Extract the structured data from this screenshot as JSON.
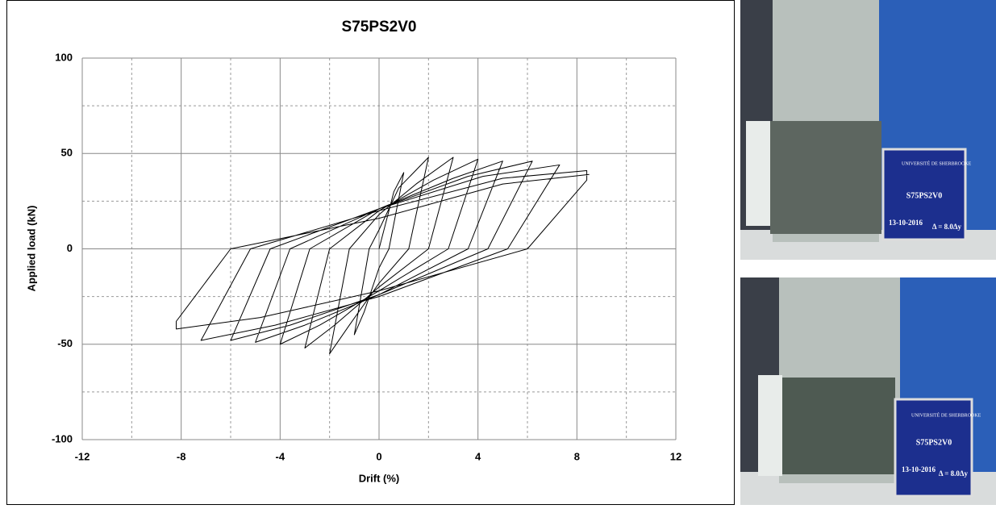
{
  "chart_data": {
    "type": "line",
    "title": "S75PS2V0",
    "xlabel": "Drift (%)",
    "ylabel": "Applied load (kN)",
    "x": [
      0,
      0.6,
      1,
      0.4,
      0,
      -0.6,
      -1,
      -0.4,
      0,
      0.8,
      2,
      1.2,
      0,
      -1.2,
      -2,
      -1.2,
      0,
      1.5,
      3,
      2,
      0,
      -1.8,
      -3,
      -2,
      0,
      2.2,
      4,
      2.8,
      0,
      -2.4,
      -4,
      -2.8,
      0,
      3,
      5,
      3.6,
      0,
      -3,
      -5,
      -3.6,
      0,
      3.6,
      6.2,
      4.4,
      0,
      -3.6,
      -6,
      -4.4,
      0,
      4.2,
      7.3,
      5.2,
      0,
      -4.2,
      -7.2,
      -5.2,
      0,
      5,
      8.4,
      8.4,
      6,
      0,
      -4.8,
      -8.2,
      -8.2,
      -6,
      0,
      5,
      8.5
    ],
    "values": [
      0,
      30,
      40,
      0,
      -10,
      -33,
      -45,
      0,
      10,
      32,
      48,
      0,
      -18,
      -40,
      -55,
      0,
      18,
      34,
      48,
      0,
      -20,
      -40,
      -52,
      0,
      20,
      36,
      47,
      0,
      -22,
      -40,
      -50,
      0,
      21,
      37,
      46,
      0,
      -24,
      -40,
      -49,
      0,
      21,
      38,
      46,
      0,
      -24,
      -40,
      -48,
      0,
      21,
      38,
      44,
      0,
      -25,
      -40,
      -48,
      0,
      20,
      37,
      41,
      36,
      0,
      -22,
      -36,
      -42,
      -38,
      0,
      16,
      34,
      39
    ],
    "color": "#000000",
    "xlim": [
      -12,
      12
    ],
    "xticks": [
      -12,
      -8,
      -4,
      0,
      4,
      8,
      12
    ],
    "ylim": [
      -100,
      100
    ],
    "yticks": [
      -100,
      -50,
      0,
      50,
      100
    ],
    "minor_xticks": [
      -10,
      -6,
      -2,
      2,
      6,
      10
    ],
    "minor_yticks": [
      -75,
      -25,
      25,
      75
    ],
    "grid": true
  },
  "photos": [
    {
      "university": "UNIVERSITÉ DE SHERBROOKE",
      "specimen": "S75PS2V0",
      "date": "13-10-2016",
      "ductility": "Δ = 8.0Δy"
    },
    {
      "university": "UNIVERSITÉ DE SHERBROOKE",
      "specimen": "S75PS2V0",
      "date": "13-10-2016",
      "ductility": "Δ = 8.0Δy"
    }
  ]
}
